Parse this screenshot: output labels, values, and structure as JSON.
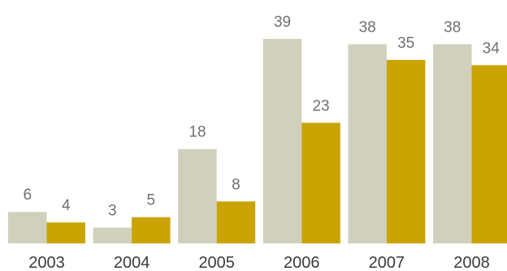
{
  "chart_data": {
    "type": "bar",
    "title": "",
    "xlabel": "",
    "ylabel": "",
    "categories": [
      "2003",
      "2004",
      "2005",
      "2006",
      "2007",
      "2008"
    ],
    "series": [
      {
        "color": "#d0d0bd",
        "values": [
          6,
          3,
          18,
          39,
          38,
          38
        ]
      },
      {
        "color": "#c9a400",
        "values": [
          4,
          5,
          8,
          23,
          35,
          34
        ]
      }
    ],
    "ylim": [
      0,
      39
    ],
    "grid": false,
    "legend": "none",
    "data_labels": true
  }
}
